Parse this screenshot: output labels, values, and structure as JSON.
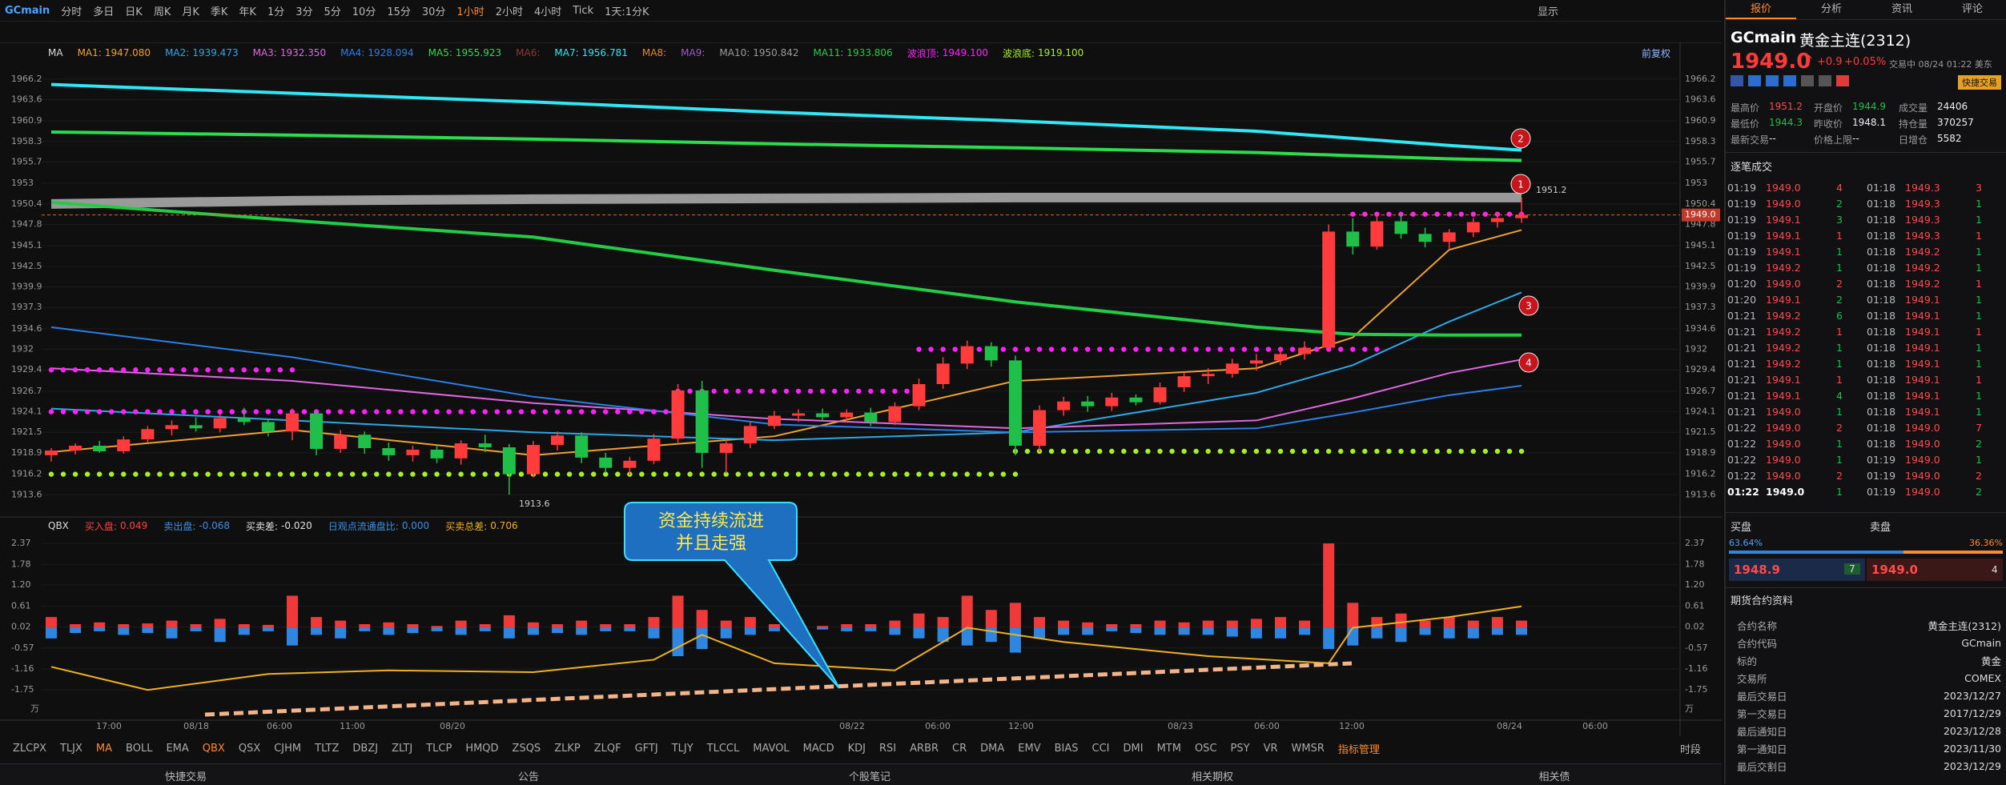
{
  "toolbar": {
    "symbol": "GCmain",
    "periods": [
      "分时",
      "多日",
      "日K",
      "周K",
      "月K",
      "季K",
      "年K",
      "1分",
      "3分",
      "5分",
      "10分",
      "15分",
      "30分",
      "1小时",
      "2小时",
      "4小时",
      "Tick"
    ],
    "range": "1天:1分K",
    "display": "显示"
  },
  "ma_legend": {
    "title": "MA",
    "adjust": "前复权",
    "items": [
      {
        "label": "MA1:",
        "value": "1947.080",
        "color": "#f0a030",
        "line": {
          "index": [
            0,
            10,
            20,
            30,
            40,
            50,
            54,
            58,
            61
          ],
          "values": [
            1919.0,
            1921.8,
            1918.6,
            1921.0,
            1928.0,
            1929.6,
            1933.5,
            1944.6,
            1947.1
          ]
        }
      },
      {
        "label": "MA2:",
        "value": "1939.473",
        "color": "#2aa8e6",
        "line": {
          "index": [
            0,
            10,
            20,
            30,
            40,
            50,
            54,
            58,
            61
          ],
          "values": [
            1924.5,
            1923.0,
            1921.5,
            1920.5,
            1921.5,
            1926.5,
            1930.0,
            1935.5,
            1939.2
          ]
        }
      },
      {
        "label": "MA3:",
        "value": "1932.350",
        "color": "#e066e0",
        "line": {
          "index": [
            0,
            10,
            20,
            30,
            40,
            50,
            54,
            58,
            61
          ],
          "values": [
            1929.6,
            1928.0,
            1925.2,
            1923.2,
            1922.0,
            1923.0,
            1925.8,
            1929.0,
            1930.7
          ]
        }
      },
      {
        "label": "MA4:",
        "value": "1928.094",
        "color": "#2a7fe8",
        "line": {
          "index": [
            0,
            10,
            20,
            30,
            40,
            50,
            54,
            58,
            61
          ],
          "values": [
            1934.8,
            1931.0,
            1926.0,
            1922.5,
            1921.5,
            1922.0,
            1924.0,
            1926.2,
            1927.4
          ]
        }
      },
      {
        "label": "MA5:",
        "value": "1955.923",
        "color": "#2bdc4d",
        "line": {
          "index": [
            0,
            10,
            20,
            30,
            40,
            50,
            54,
            58,
            61
          ],
          "values": [
            1959.5,
            1959.1,
            1958.6,
            1958.0,
            1957.5,
            1956.9,
            1956.5,
            1956.1,
            1955.9
          ]
        }
      },
      {
        "label": "MA6:",
        "color": "#8a3a3a"
      },
      {
        "label": "MA7:",
        "value": "1956.781",
        "color": "#2fe8f5",
        "line": {
          "index": [
            0,
            10,
            20,
            30,
            40,
            50,
            54,
            58,
            61
          ],
          "values": [
            1965.5,
            1964.4,
            1963.3,
            1962.0,
            1960.9,
            1959.6,
            1958.7,
            1957.8,
            1957.2
          ]
        }
      },
      {
        "label": "MA8:",
        "color": "#e08a20"
      },
      {
        "label": "MA9:",
        "color": "#9a5ad0"
      },
      {
        "label": "MA10:",
        "value": "1950.842",
        "color": "#9a9a9a",
        "line": {
          "index": [
            0,
            10,
            20,
            30,
            40,
            50,
            54,
            58,
            61
          ],
          "values": [
            1950.4,
            1950.8,
            1951.0,
            1951.1,
            1951.2,
            1951.2,
            1951.2,
            1951.2,
            1951.2
          ]
        }
      },
      {
        "label": "MA11:",
        "value": "1933.806",
        "color": "#22cc44",
        "line": {
          "index": [
            0,
            10,
            20,
            30,
            40,
            50,
            54,
            58,
            61
          ],
          "values": [
            1950.6,
            1948.3,
            1946.2,
            1942.0,
            1938.0,
            1934.8,
            1933.9,
            1933.8,
            1933.8
          ]
        }
      },
      {
        "label": "波浪顶:",
        "value": "1949.100",
        "color": "#ff22ff",
        "dots": [
          {
            "from": 0,
            "to": 10,
            "value": 1929.4
          },
          {
            "from": 0,
            "to": 26,
            "value": 1924.1
          },
          {
            "from": 26,
            "to": 36,
            "value": 1926.7
          },
          {
            "from": 36,
            "to": 55,
            "value": 1932.0
          },
          {
            "from": 54,
            "to": 61,
            "value": 1949.1
          }
        ]
      },
      {
        "label": "波浪底:",
        "value": "1919.100",
        "color": "#a6f020",
        "dots": [
          {
            "from": 0,
            "to": 40,
            "value": 1916.2
          },
          {
            "from": 40,
            "to": 61,
            "value": 1919.1
          }
        ]
      }
    ]
  },
  "price_chart": {
    "ylim": [
      1911.4,
      1968.1
    ],
    "yticks": [
      1966.2,
      1963.6,
      1960.9,
      1958.3,
      1955.7,
      1953.0,
      1950.4,
      1947.8,
      1945.1,
      1942.5,
      1939.9,
      1937.3,
      1934.6,
      1932.0,
      1929.4,
      1926.7,
      1924.1,
      1921.5,
      1918.9,
      1916.2,
      1913.6
    ],
    "last_price": {
      "value": 1949.0,
      "label": "1949.0"
    },
    "high_label": "1951.2",
    "low_label": "1913.6",
    "markers": [
      "1",
      "2",
      "3",
      "4"
    ],
    "candles": [
      [
        1918.6,
        1919.5,
        1917.8,
        1919.2
      ],
      [
        1919.2,
        1920.1,
        1918.7,
        1919.8
      ],
      [
        1919.8,
        1920.4,
        1918.9,
        1919.1
      ],
      [
        1919.1,
        1921.0,
        1918.8,
        1920.6
      ],
      [
        1920.6,
        1922.3,
        1920.2,
        1921.9
      ],
      [
        1921.9,
        1923.0,
        1921.1,
        1922.4
      ],
      [
        1922.4,
        1923.4,
        1921.6,
        1922.0
      ],
      [
        1922.0,
        1923.8,
        1921.5,
        1923.3
      ],
      [
        1923.3,
        1924.6,
        1922.4,
        1922.8
      ],
      [
        1922.8,
        1923.2,
        1921.0,
        1921.6
      ],
      [
        1921.6,
        1924.5,
        1920.5,
        1923.9
      ],
      [
        1923.9,
        1924.2,
        1918.6,
        1919.4
      ],
      [
        1919.4,
        1921.8,
        1918.9,
        1921.2
      ],
      [
        1921.2,
        1921.6,
        1918.8,
        1919.5
      ],
      [
        1919.5,
        1920.2,
        1917.9,
        1918.6
      ],
      [
        1918.6,
        1919.8,
        1917.8,
        1919.3
      ],
      [
        1919.3,
        1919.9,
        1917.6,
        1918.2
      ],
      [
        1918.2,
        1920.5,
        1917.4,
        1920.1
      ],
      [
        1920.1,
        1921.2,
        1919.0,
        1919.6
      ],
      [
        1919.6,
        1920.0,
        1913.6,
        1916.2
      ],
      [
        1916.2,
        1920.4,
        1915.8,
        1919.9
      ],
      [
        1919.9,
        1921.6,
        1919.2,
        1921.1
      ],
      [
        1921.1,
        1921.5,
        1917.6,
        1918.3
      ],
      [
        1918.3,
        1918.9,
        1916.4,
        1917.0
      ],
      [
        1917.0,
        1918.4,
        1916.1,
        1917.9
      ],
      [
        1917.9,
        1921.3,
        1917.5,
        1920.7
      ],
      [
        1920.7,
        1927.6,
        1920.2,
        1926.8
      ],
      [
        1926.8,
        1928.0,
        1917.0,
        1918.9
      ],
      [
        1918.9,
        1920.6,
        1916.3,
        1920.1
      ],
      [
        1920.1,
        1922.8,
        1919.5,
        1922.3
      ],
      [
        1922.3,
        1924.2,
        1921.9,
        1923.6
      ],
      [
        1923.6,
        1924.4,
        1922.8,
        1923.9
      ],
      [
        1923.9,
        1924.5,
        1923.0,
        1923.4
      ],
      [
        1923.4,
        1924.4,
        1922.7,
        1924.0
      ],
      [
        1924.0,
        1924.6,
        1922.3,
        1922.8
      ],
      [
        1922.8,
        1925.3,
        1922.4,
        1924.8
      ],
      [
        1924.8,
        1928.3,
        1924.3,
        1927.6
      ],
      [
        1927.6,
        1931.0,
        1927.0,
        1930.2
      ],
      [
        1930.2,
        1933.1,
        1929.5,
        1932.4
      ],
      [
        1932.4,
        1932.9,
        1929.8,
        1930.6
      ],
      [
        1930.6,
        1931.2,
        1918.6,
        1919.8
      ],
      [
        1919.8,
        1924.9,
        1919.0,
        1924.3
      ],
      [
        1924.3,
        1926.0,
        1923.6,
        1925.4
      ],
      [
        1925.4,
        1926.1,
        1924.1,
        1924.8
      ],
      [
        1924.8,
        1926.5,
        1924.2,
        1925.9
      ],
      [
        1925.9,
        1926.3,
        1924.9,
        1925.3
      ],
      [
        1925.3,
        1927.8,
        1925.0,
        1927.2
      ],
      [
        1927.2,
        1929.1,
        1926.6,
        1928.6
      ],
      [
        1928.6,
        1929.6,
        1927.6,
        1928.9
      ],
      [
        1928.9,
        1930.8,
        1928.4,
        1930.2
      ],
      [
        1930.2,
        1931.4,
        1929.3,
        1930.6
      ],
      [
        1930.6,
        1932.1,
        1930.0,
        1931.4
      ],
      [
        1931.4,
        1933.0,
        1930.7,
        1932.2
      ],
      [
        1932.2,
        1947.8,
        1932.0,
        1946.9
      ],
      [
        1946.9,
        1948.6,
        1944.0,
        1945.0
      ],
      [
        1945.0,
        1949.0,
        1944.6,
        1948.2
      ],
      [
        1948.2,
        1949.1,
        1946.0,
        1946.6
      ],
      [
        1946.6,
        1947.4,
        1944.9,
        1945.6
      ],
      [
        1945.6,
        1947.2,
        1944.6,
        1946.8
      ],
      [
        1946.8,
        1948.6,
        1946.2,
        1948.1
      ],
      [
        1948.1,
        1949.3,
        1947.4,
        1948.6
      ],
      [
        1948.6,
        1951.2,
        1948.0,
        1949.0
      ]
    ]
  },
  "indicator": {
    "name": "QBX",
    "legend": [
      {
        "label": "买入盘:",
        "value": "0.049",
        "color": "#ff4040"
      },
      {
        "label": "卖出盘:",
        "value": "-0.068",
        "color": "#3a90e8"
      },
      {
        "label": "买卖差:",
        "value": "-0.020",
        "color": "#e0e0e0"
      },
      {
        "label": "日观点流通盘比:",
        "value": "0.000",
        "color": "#3a90e8"
      },
      {
        "label": "买卖总差:",
        "value": "0.706",
        "color": "#f0b020"
      }
    ],
    "ylim": [
      -2.51,
      2.53
    ],
    "yticks": [
      2.37,
      1.78,
      {
        "value": 1.2,
        "label": "1.20"
      },
      0.61,
      0.02,
      -0.57,
      -1.16,
      -1.75
    ],
    "unit": "万",
    "buy": [
      0.3,
      0.1,
      0.15,
      0.1,
      0.12,
      0.2,
      0.1,
      0.25,
      0.1,
      0.08,
      0.9,
      0.3,
      0.2,
      0.1,
      0.15,
      0.1,
      0.05,
      0.2,
      0.1,
      0.35,
      0.15,
      0.1,
      0.2,
      0.1,
      0.1,
      0.3,
      0.9,
      0.5,
      0.2,
      0.3,
      0.1,
      0.05,
      0.05,
      0.1,
      0.1,
      0.2,
      0.4,
      0.3,
      0.9,
      0.5,
      0.7,
      0.3,
      0.2,
      0.15,
      0.1,
      0.1,
      0.2,
      0.15,
      0.2,
      0.2,
      0.25,
      0.3,
      0.2,
      2.37,
      0.7,
      0.3,
      0.4,
      0.2,
      0.3,
      0.2,
      0.3,
      0.2
    ],
    "sell": [
      -0.3,
      -0.15,
      -0.1,
      -0.2,
      -0.15,
      -0.3,
      -0.1,
      -0.4,
      -0.2,
      -0.1,
      -0.5,
      -0.2,
      -0.3,
      -0.1,
      -0.2,
      -0.15,
      -0.1,
      -0.2,
      -0.1,
      -0.3,
      -0.2,
      -0.15,
      -0.2,
      -0.1,
      -0.1,
      -0.3,
      -0.8,
      -0.6,
      -0.3,
      -0.2,
      -0.1,
      -0.05,
      -0.05,
      -0.1,
      -0.1,
      -0.2,
      -0.3,
      -0.4,
      -0.5,
      -0.4,
      -0.7,
      -0.3,
      -0.2,
      -0.2,
      -0.1,
      -0.15,
      -0.2,
      -0.2,
      -0.2,
      -0.25,
      -0.3,
      -0.3,
      -0.2,
      -0.6,
      -0.5,
      -0.3,
      -0.4,
      -0.2,
      -0.3,
      -0.3,
      -0.2,
      -0.2
    ],
    "total": {
      "index": [
        0,
        4,
        9,
        14,
        20,
        25,
        27,
        30,
        35,
        38,
        42,
        48,
        53,
        54,
        58,
        61
      ],
      "values": [
        -1.1,
        -1.75,
        -1.3,
        -1.2,
        -1.25,
        -0.9,
        -0.2,
        -1.0,
        -1.2,
        0.0,
        -0.4,
        -0.8,
        -1.0,
        0.0,
        0.3,
        0.6
      ]
    },
    "callout": [
      "资金持续流进",
      "并且走强"
    ]
  },
  "time_axis": [
    "17:00",
    "08/18",
    "06:00",
    "11:00",
    "08/20",
    "08/22",
    "06:00",
    "12:00",
    "08/23",
    "06:00",
    "12:00",
    "08/24",
    "06:00"
  ],
  "indicator_tabs": [
    "ZLCPX",
    "TLJX",
    "MA",
    "BOLL",
    "EMA",
    "QBX",
    "QSX",
    "CJHM",
    "TLTZ",
    "DBZJ",
    "ZLTJ",
    "TLCP",
    "HMQD",
    "ZSQS",
    "ZLKP",
    "ZLQF",
    "GFTJ",
    "TLJY",
    "TLCCL",
    "MAVOL",
    "MACD",
    "KDJ",
    "RSI",
    "ARBR",
    "CR",
    "DMA",
    "EMV",
    "BIAS",
    "CCI",
    "DMI",
    "MTM",
    "OSC",
    "PSY",
    "VR",
    "WMSR",
    "指标管理"
  ],
  "session": "时段",
  "bottom_bar": [
    "快捷交易",
    "公告",
    "个股笔记",
    "相关期权",
    "相关债"
  ],
  "panel": {
    "tabs": [
      "报价",
      "分析",
      "资讯",
      "评论"
    ],
    "code": "GCmain",
    "name": "黄金主连(2312)",
    "price": "1949.0",
    "change": "+0.9",
    "change_pct": "+0.05%",
    "status": "交易中 08/24 01:22 美东",
    "quick_trade": "快捷交易",
    "stats": [
      [
        "最高价",
        "1951.2"
      ],
      [
        "开盘价",
        "1944.9"
      ],
      [
        "成交量",
        "24406"
      ],
      [
        "最低价",
        "1944.3"
      ],
      [
        "昨收价",
        "1948.1"
      ],
      [
        "持仓量",
        "370257"
      ],
      [
        "最新交易",
        "--"
      ],
      [
        "价格上限",
        "--"
      ],
      [
        "日增仓",
        "5582"
      ]
    ],
    "ticks_title": "逐笔成交",
    "ticks_left": [
      [
        "01:19",
        "1949.0",
        "4"
      ],
      [
        "01:19",
        "1949.0",
        "2"
      ],
      [
        "01:19",
        "1949.1",
        "3"
      ],
      [
        "01:19",
        "1949.1",
        "1"
      ],
      [
        "01:19",
        "1949.1",
        "1"
      ],
      [
        "01:19",
        "1949.2",
        "1"
      ],
      [
        "01:20",
        "1949.0",
        "2"
      ],
      [
        "01:20",
        "1949.1",
        "2"
      ],
      [
        "01:21",
        "1949.2",
        "6"
      ],
      [
        "01:21",
        "1949.2",
        "1"
      ],
      [
        "01:21",
        "1949.2",
        "1"
      ],
      [
        "01:21",
        "1949.2",
        "1"
      ],
      [
        "01:21",
        "1949.1",
        "1"
      ],
      [
        "01:21",
        "1949.1",
        "4"
      ],
      [
        "01:21",
        "1949.0",
        "1"
      ],
      [
        "01:22",
        "1949.0",
        "2"
      ],
      [
        "01:22",
        "1949.0",
        "1"
      ],
      [
        "01:22",
        "1949.0",
        "1"
      ],
      [
        "01:22",
        "1949.0",
        "2"
      ],
      [
        "01:22",
        "1949.0",
        "1"
      ]
    ],
    "ticks_right": [
      [
        "01:18",
        "1949.3",
        "3"
      ],
      [
        "01:18",
        "1949.3",
        "1"
      ],
      [
        "01:18",
        "1949.3",
        "1"
      ],
      [
        "01:18",
        "1949.3",
        "1"
      ],
      [
        "01:18",
        "1949.2",
        "1"
      ],
      [
        "01:18",
        "1949.2",
        "1"
      ],
      [
        "01:18",
        "1949.2",
        "1"
      ],
      [
        "01:18",
        "1949.1",
        "1"
      ],
      [
        "01:18",
        "1949.1",
        "1"
      ],
      [
        "01:18",
        "1949.1",
        "1"
      ],
      [
        "01:18",
        "1949.1",
        "1"
      ],
      [
        "01:18",
        "1949.1",
        "1"
      ],
      [
        "01:18",
        "1949.1",
        "1"
      ],
      [
        "01:18",
        "1949.1",
        "1"
      ],
      [
        "01:18",
        "1949.1",
        "1"
      ],
      [
        "01:18",
        "1949.0",
        "7"
      ],
      [
        "01:18",
        "1949.0",
        "2"
      ],
      [
        "01:19",
        "1949.0",
        "1"
      ],
      [
        "01:19",
        "1949.0",
        "2"
      ],
      [
        "01:19",
        "1949.0",
        "2"
      ]
    ],
    "bid_label": "买盘",
    "ask_label": "卖盘",
    "bid_pct": {
      "value": 63.64,
      "label": "63.64%"
    },
    "ask_pct": {
      "value": 36.36,
      "label": "36.36%"
    },
    "bid_price": "1948.9",
    "bid_qty": "7",
    "ask_price": "1949.0",
    "ask_qty": "4",
    "contract_title": "期货合约资料",
    "contract": [
      [
        "合约名称",
        "黄金主连(2312)"
      ],
      [
        "合约代码",
        "GCmain"
      ],
      [
        "标的",
        "黄金"
      ],
      [
        "交易所",
        "COMEX"
      ],
      [
        "最后交易日",
        "2023/12/27"
      ],
      [
        "第一交易日",
        "2017/12/29"
      ],
      [
        "最后通知日",
        "2023/12/28"
      ],
      [
        "第一通知日",
        "2023/11/30"
      ],
      [
        "最后交割日",
        "2023/12/29"
      ]
    ]
  }
}
